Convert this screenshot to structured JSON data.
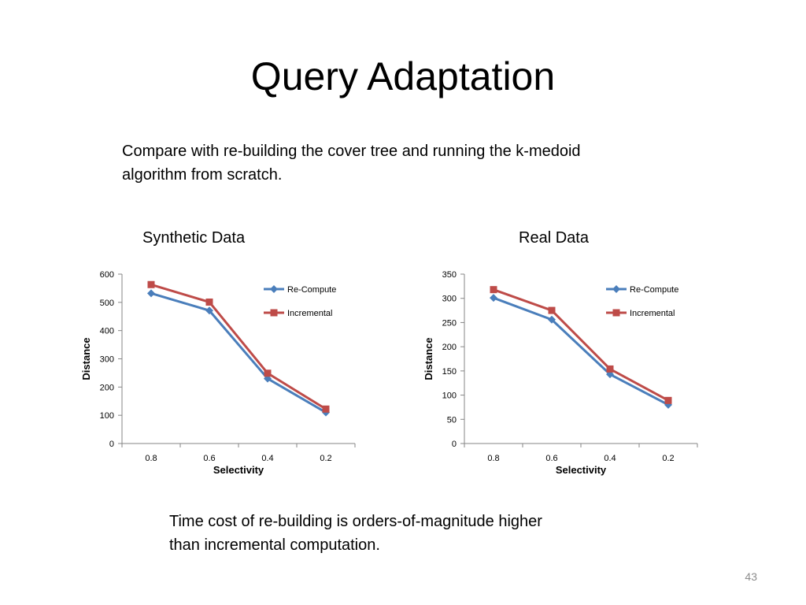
{
  "slide": {
    "title": "Query Adaptation",
    "intro_lines": [
      "Compare with re-building the cover tree and running the k-medoid",
      "algorithm from scratch."
    ],
    "conclusion_lines": [
      "Time cost of re-building is orders-of-magnitude higher",
      "than incremental computation."
    ],
    "page_number": "43"
  },
  "colors": {
    "re_compute": "#4a7ebb",
    "incremental": "#be4b48",
    "axis": "#868686"
  },
  "chart_data": [
    {
      "type": "line",
      "title": "Synthetic Data",
      "xlabel": "Selectivity",
      "ylabel": "Distance",
      "categories": [
        "0.8",
        "0.6",
        "0.4",
        "0.2"
      ],
      "ylim": [
        0,
        600
      ],
      "yticks": [
        0,
        100,
        200,
        300,
        400,
        500,
        600
      ],
      "grid": false,
      "legend_position": "top-right",
      "series": [
        {
          "name": "Re-Compute",
          "marker": "diamond",
          "values": [
            532,
            471,
            230,
            110
          ]
        },
        {
          "name": "Incremental",
          "marker": "square",
          "values": [
            563,
            501,
            249,
            122
          ]
        }
      ]
    },
    {
      "type": "line",
      "title": "Real Data",
      "xlabel": "Selectivity",
      "ylabel": "Distance",
      "categories": [
        "0.8",
        "0.6",
        "0.4",
        "0.2"
      ],
      "ylim": [
        0,
        350
      ],
      "yticks": [
        0,
        50,
        100,
        150,
        200,
        250,
        300,
        350
      ],
      "grid": false,
      "legend_position": "top-right",
      "series": [
        {
          "name": "Re-Compute",
          "marker": "diamond",
          "values": [
            301,
            256,
            143,
            80
          ]
        },
        {
          "name": "Incremental",
          "marker": "square",
          "values": [
            318,
            275,
            154,
            89
          ]
        }
      ]
    }
  ]
}
